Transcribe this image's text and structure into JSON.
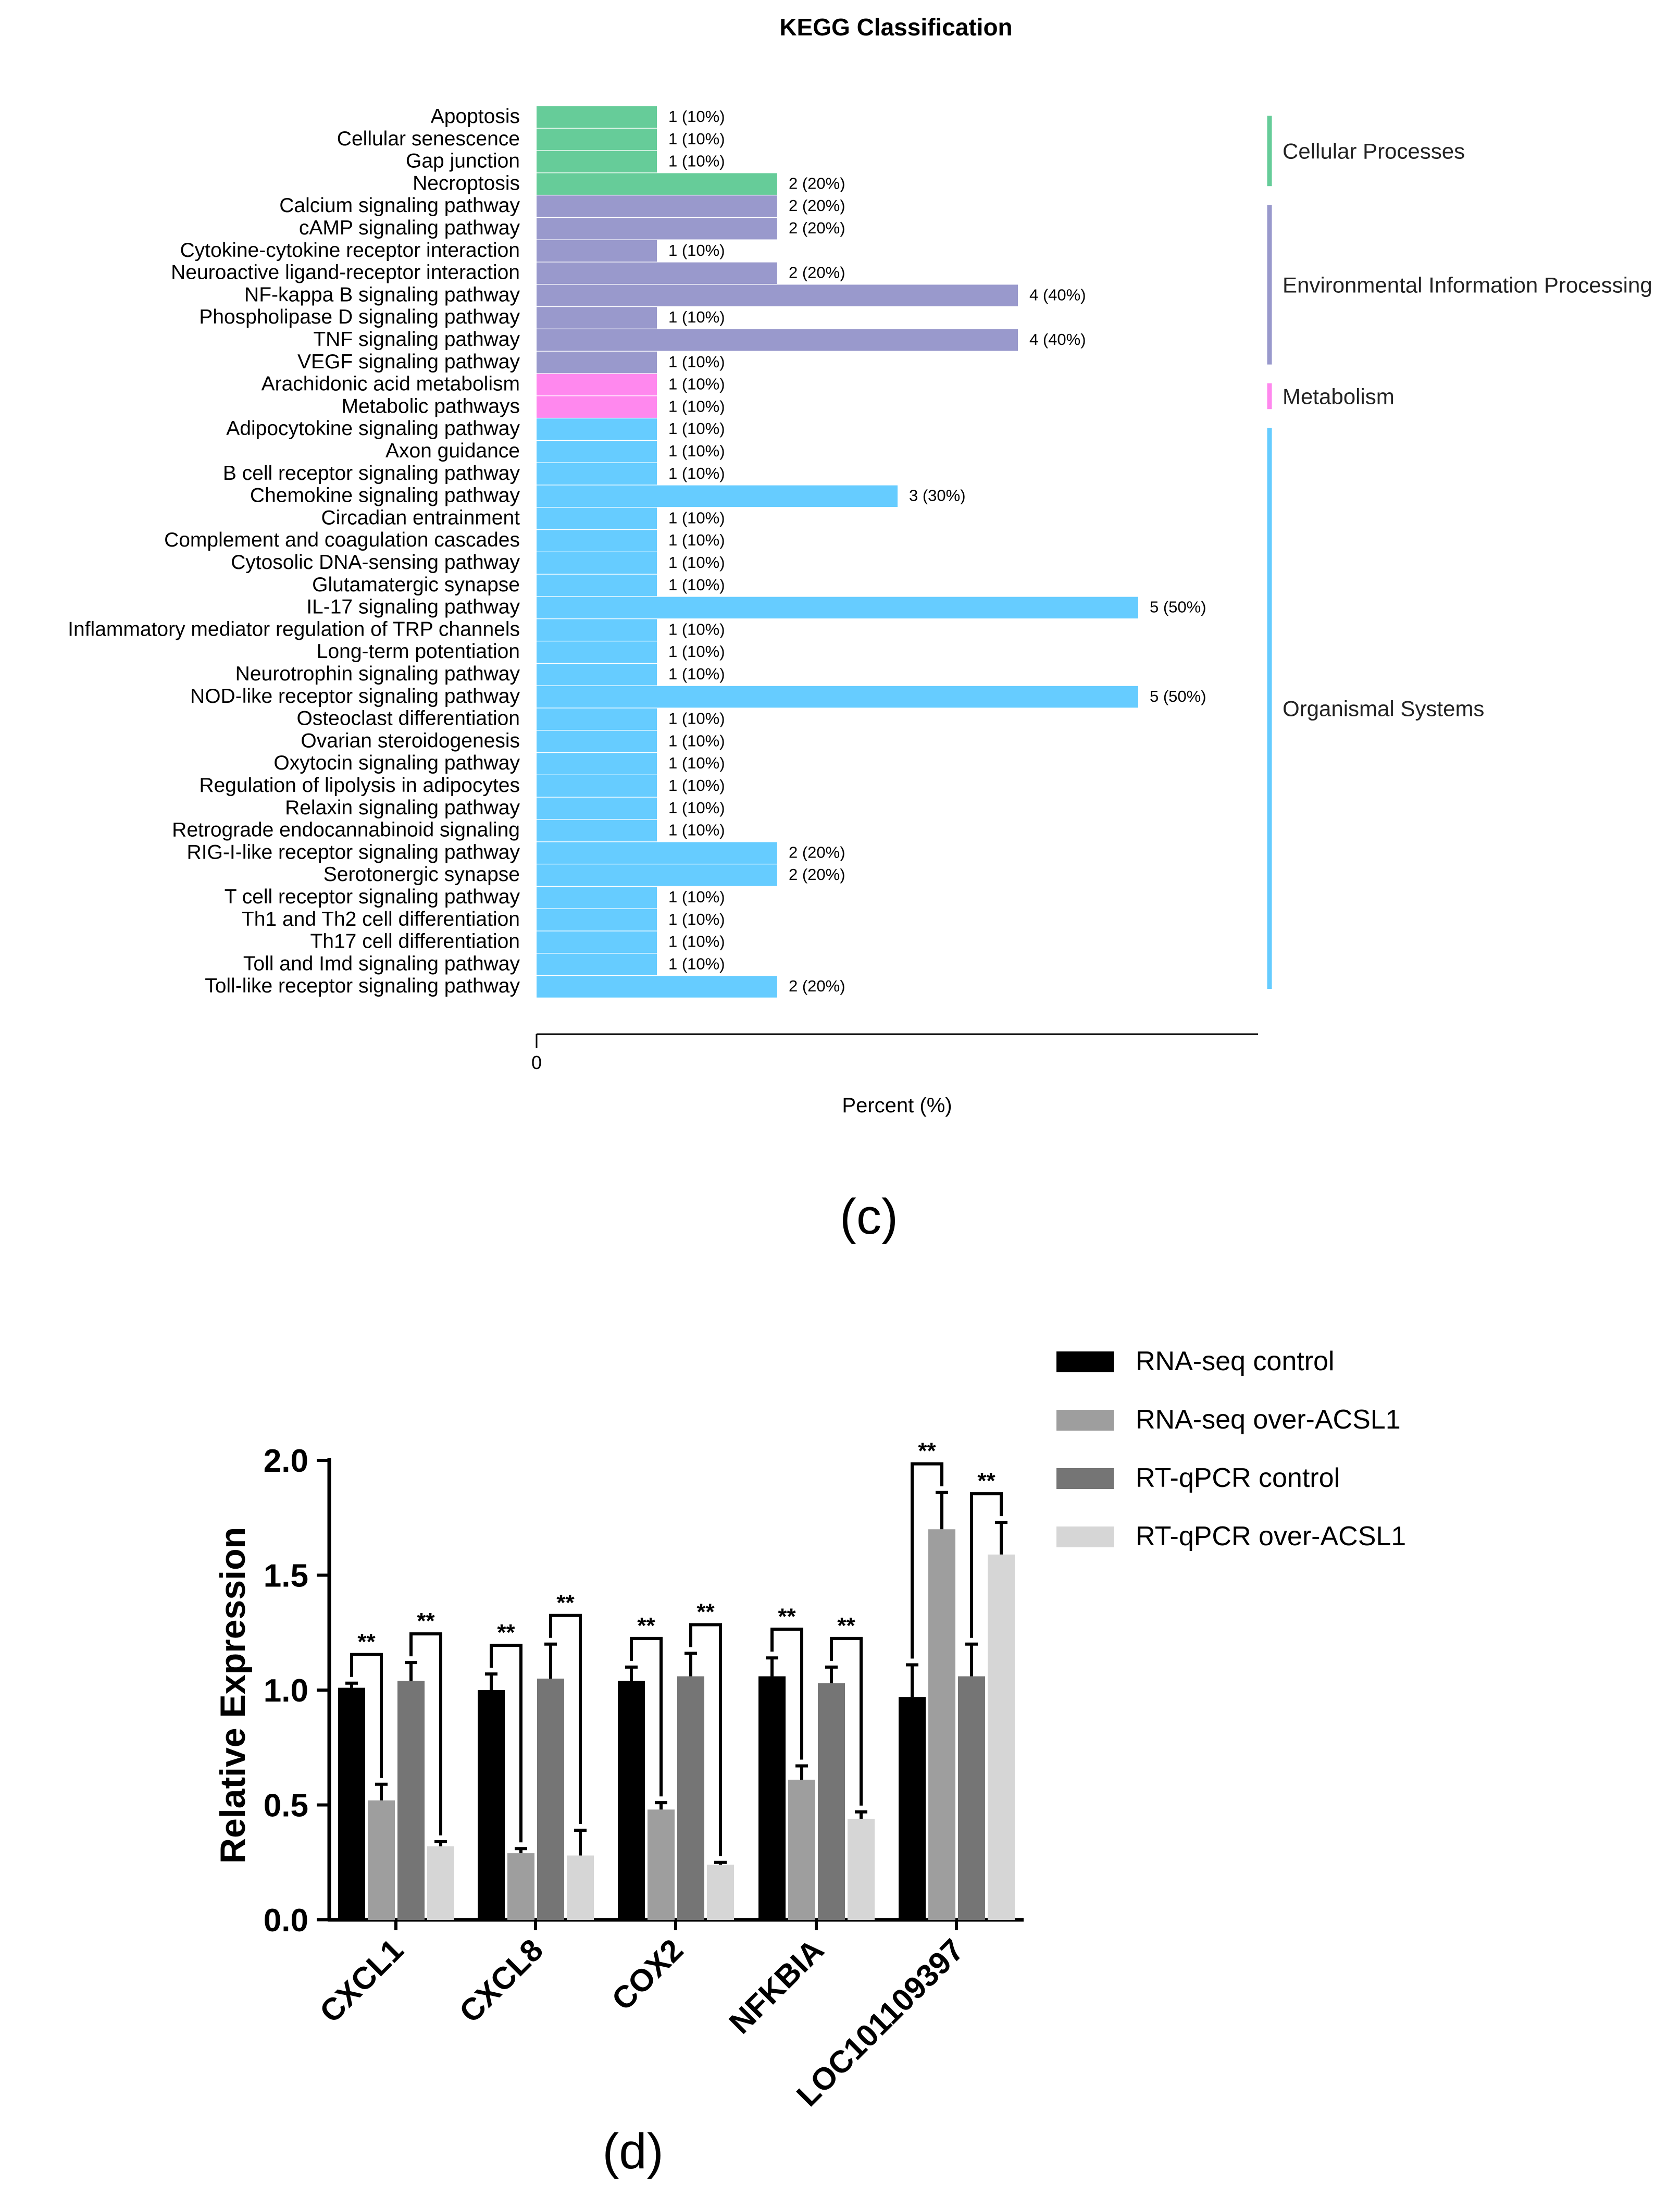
{
  "panel_c": {
    "caption": "(c)",
    "chart_data": {
      "type": "bar",
      "orientation": "horizontal",
      "title": "KEGG Classification",
      "xlabel": "Percent (%)",
      "ylabel": "",
      "xlim": [
        0,
        60
      ],
      "xticks": [
        "0"
      ],
      "grid": false,
      "categories": [
        "Apoptosis",
        "Cellular senescence",
        "Gap junction",
        "Necroptosis",
        "Calcium signaling pathway",
        "cAMP signaling pathway",
        "Cytokine-cytokine receptor interaction",
        "Neuroactive ligand-receptor interaction",
        "NF-kappa B signaling pathway",
        "Phospholipase D signaling pathway",
        "TNF signaling pathway",
        "VEGF signaling pathway",
        "Arachidonic acid metabolism",
        "Metabolic pathways",
        "Adipocytokine signaling pathway",
        "Axon guidance",
        "B cell receptor signaling pathway",
        "Chemokine signaling pathway",
        "Circadian entrainment",
        "Complement and coagulation cascades",
        "Cytosolic DNA-sensing pathway",
        "Glutamatergic synapse",
        "IL-17 signaling pathway",
        "Inflammatory mediator regulation of TRP channels",
        "Long-term potentiation",
        "Neurotrophin signaling pathway",
        "NOD-like receptor signaling pathway",
        "Osteoclast differentiation",
        "Ovarian steroidogenesis",
        "Oxytocin signaling pathway",
        "Regulation of lipolysis in adipocytes",
        "Relaxin signaling pathway",
        "Retrograde endocannabinoid signaling",
        "RIG-I-like receptor signaling pathway",
        "Serotonergic synapse",
        "T cell receptor signaling pathway",
        "Th1 and Th2 cell differentiation",
        "Th17 cell differentiation",
        "Toll and Imd signaling pathway",
        "Toll-like receptor signaling pathway"
      ],
      "values": [
        10,
        10,
        10,
        20,
        20,
        20,
        10,
        20,
        40,
        10,
        40,
        10,
        10,
        10,
        10,
        10,
        10,
        30,
        10,
        10,
        10,
        10,
        50,
        10,
        10,
        10,
        50,
        10,
        10,
        10,
        10,
        10,
        10,
        20,
        20,
        10,
        10,
        10,
        10,
        20
      ],
      "bar_labels": [
        "1 (10%)",
        "1 (10%)",
        "1 (10%)",
        "2 (20%)",
        "2 (20%)",
        "2 (20%)",
        "1 (10%)",
        "2 (20%)",
        "4 (40%)",
        "1 (10%)",
        "4 (40%)",
        "1 (10%)",
        "1 (10%)",
        "1 (10%)",
        "1 (10%)",
        "1 (10%)",
        "1 (10%)",
        "3 (30%)",
        "1 (10%)",
        "1 (10%)",
        "1 (10%)",
        "1 (10%)",
        "5 (50%)",
        "1 (10%)",
        "1 (10%)",
        "1 (10%)",
        "5 (50%)",
        "1 (10%)",
        "1 (10%)",
        "1 (10%)",
        "1 (10%)",
        "1 (10%)",
        "1 (10%)",
        "2 (20%)",
        "2 (20%)",
        "1 (10%)",
        "1 (10%)",
        "1 (10%)",
        "1 (10%)",
        "2 (20%)"
      ],
      "groups": [
        {
          "name": "Cellular Processes",
          "start": 0,
          "count": 4,
          "color": "#66cc99"
        },
        {
          "name": "Environmental Information Processing",
          "start": 4,
          "count": 8,
          "color": "#9999cc"
        },
        {
          "name": "Metabolism",
          "start": 12,
          "count": 2,
          "color": "#ff88ee"
        },
        {
          "name": "Organismal Systems",
          "start": 14,
          "count": 26,
          "color": "#66ccff"
        }
      ]
    }
  },
  "panel_d": {
    "caption": "(d)",
    "chart_data": {
      "type": "bar",
      "title": "",
      "xlabel": "",
      "ylabel": "Relative Expression",
      "ylim": [
        0,
        2.0
      ],
      "yticks": [
        "0.0",
        "0.5",
        "1.0",
        "1.5",
        "2.0"
      ],
      "categories": [
        "CXCL1",
        "CXCL8",
        "COX2",
        "NFKBIA",
        "LOC101109397"
      ],
      "series": [
        {
          "name": "RNA-seq control",
          "color": "#000000",
          "values": [
            1.01,
            1.0,
            1.04,
            1.06,
            0.97
          ],
          "errors": [
            0.02,
            0.07,
            0.06,
            0.08,
            0.14
          ]
        },
        {
          "name": "RNA-seq over-ACSL1",
          "color": "#9e9e9e",
          "values": [
            0.52,
            0.29,
            0.48,
            0.61,
            1.7
          ],
          "errors": [
            0.07,
            0.02,
            0.03,
            0.06,
            0.16
          ]
        },
        {
          "name": "RT-qPCR control",
          "color": "#757575",
          "values": [
            1.04,
            1.05,
            1.06,
            1.03,
            1.06
          ],
          "errors": [
            0.08,
            0.15,
            0.1,
            0.07,
            0.14
          ]
        },
        {
          "name": "RT-qPCR over-ACSL1",
          "color": "#d6d6d6",
          "values": [
            0.32,
            0.28,
            0.24,
            0.44,
            1.59
          ],
          "errors": [
            0.02,
            0.11,
            0.01,
            0.03,
            0.14
          ]
        }
      ],
      "annotations": [
        {
          "text": "**",
          "category": "CXCL1",
          "pair": [
            0,
            1
          ]
        },
        {
          "text": "**",
          "category": "CXCL1",
          "pair": [
            2,
            3
          ]
        },
        {
          "text": "**",
          "category": "CXCL8",
          "pair": [
            0,
            1
          ]
        },
        {
          "text": "**",
          "category": "CXCL8",
          "pair": [
            2,
            3
          ]
        },
        {
          "text": "**",
          "category": "COX2",
          "pair": [
            0,
            1
          ]
        },
        {
          "text": "**",
          "category": "COX2",
          "pair": [
            2,
            3
          ]
        },
        {
          "text": "**",
          "category": "NFKBIA",
          "pair": [
            0,
            1
          ]
        },
        {
          "text": "**",
          "category": "NFKBIA",
          "pair": [
            2,
            3
          ]
        },
        {
          "text": "**",
          "category": "LOC101109397",
          "pair": [
            0,
            1
          ]
        },
        {
          "text": "**",
          "category": "LOC101109397",
          "pair": [
            2,
            3
          ]
        }
      ],
      "legend_position": "top-right"
    }
  }
}
